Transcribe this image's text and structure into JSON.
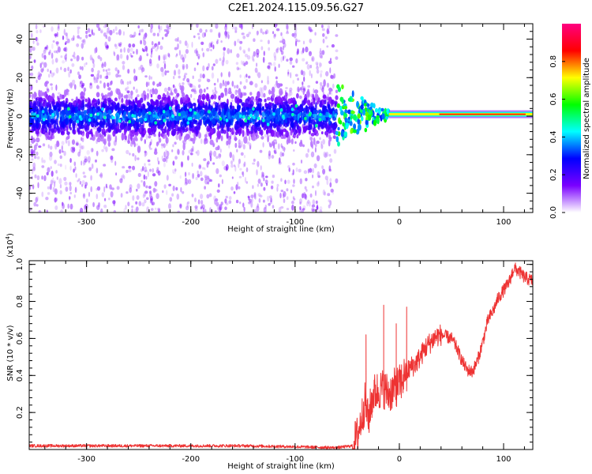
{
  "title": "C2E1.2024.115.09.56.G27",
  "chart_data": [
    {
      "type": "heatmap",
      "name": "spectrogram",
      "xlabel": "Height of straight line (km)",
      "ylabel": "Frequency (Hz)",
      "xlim": [
        -355,
        128
      ],
      "ylim": [
        -50,
        48
      ],
      "x_ticks": [
        -300,
        -200,
        -100,
        0,
        100
      ],
      "x_tick_labels": [
        "-300",
        "-200",
        "-100",
        "0",
        "100"
      ],
      "y_ticks": [
        -40,
        -20,
        0,
        20,
        40
      ],
      "y_tick_labels": [
        "-40",
        "-20",
        "0",
        "20",
        "40"
      ],
      "colorbar": {
        "label": "Normalized spectral amplitude",
        "range": [
          0,
          1
        ],
        "ticks": [
          0.0,
          0.2,
          0.4,
          0.6,
          0.8
        ],
        "tick_labels": [
          "0.0",
          "0.2",
          "0.4",
          "0.6",
          "0.8"
        ],
        "colormap": [
          "#ffffff",
          "#7a00ff",
          "#0000ff",
          "#00ffff",
          "#00ff00",
          "#ffff00",
          "#ff0000",
          "#ff0080"
        ]
      },
      "features": {
        "diffuse_region_x": [
          -355,
          -60
        ],
        "diffuse_band_center_hz": 0,
        "diffuse_band_halfwidth_hz": 8,
        "diffuse_scatter_range_hz": [
          -50,
          48
        ],
        "transition_x": [
          -60,
          -10
        ],
        "tone_region_x": [
          -10,
          128
        ],
        "tone_frequency_hz": 1
      }
    },
    {
      "type": "line",
      "name": "snr",
      "xlabel": "Height of straight line (km)",
      "ylabel": "SNR (10 * v/v)",
      "y_multiplier": "(x10",
      "y_multiplier_exp": "4",
      "y_multiplier_close": ")",
      "xlim": [
        -355,
        128
      ],
      "ylim": [
        0,
        1.02
      ],
      "x_ticks": [
        -300,
        -200,
        -100,
        0,
        100
      ],
      "x_tick_labels": [
        "-300",
        "-200",
        "-100",
        "0",
        "100"
      ],
      "y_ticks": [
        0.2,
        0.4,
        0.6,
        0.8,
        1.0
      ],
      "y_tick_labels": [
        "0.2",
        "0.4",
        "0.6",
        "0.8",
        "1.0"
      ],
      "line_color": "#ee3333",
      "series_x": [
        -355,
        -300,
        -250,
        -200,
        -150,
        -100,
        -60,
        -45,
        -40,
        -35,
        -32,
        -30,
        -28,
        -25,
        -20,
        -15,
        -10,
        -5,
        0,
        5,
        10,
        15,
        20,
        25,
        30,
        35,
        40,
        45,
        50,
        55,
        60,
        65,
        70,
        75,
        80,
        85,
        90,
        95,
        100,
        105,
        110,
        115,
        120,
        128
      ],
      "series_y": [
        0.02,
        0.02,
        0.02,
        0.02,
        0.02,
        0.015,
        0.01,
        0.02,
        0.08,
        0.2,
        0.28,
        0.15,
        0.22,
        0.3,
        0.32,
        0.33,
        0.3,
        0.33,
        0.35,
        0.4,
        0.44,
        0.46,
        0.5,
        0.55,
        0.58,
        0.61,
        0.62,
        0.61,
        0.6,
        0.55,
        0.48,
        0.43,
        0.42,
        0.48,
        0.58,
        0.7,
        0.75,
        0.82,
        0.86,
        0.9,
        0.98,
        0.96,
        0.93,
        0.91
      ],
      "spikes": [
        {
          "x": -32,
          "y": 0.62
        },
        {
          "x": -15,
          "y": 0.78
        },
        {
          "x": -3,
          "y": 0.68
        },
        {
          "x": 7,
          "y": 0.77
        }
      ]
    }
  ]
}
